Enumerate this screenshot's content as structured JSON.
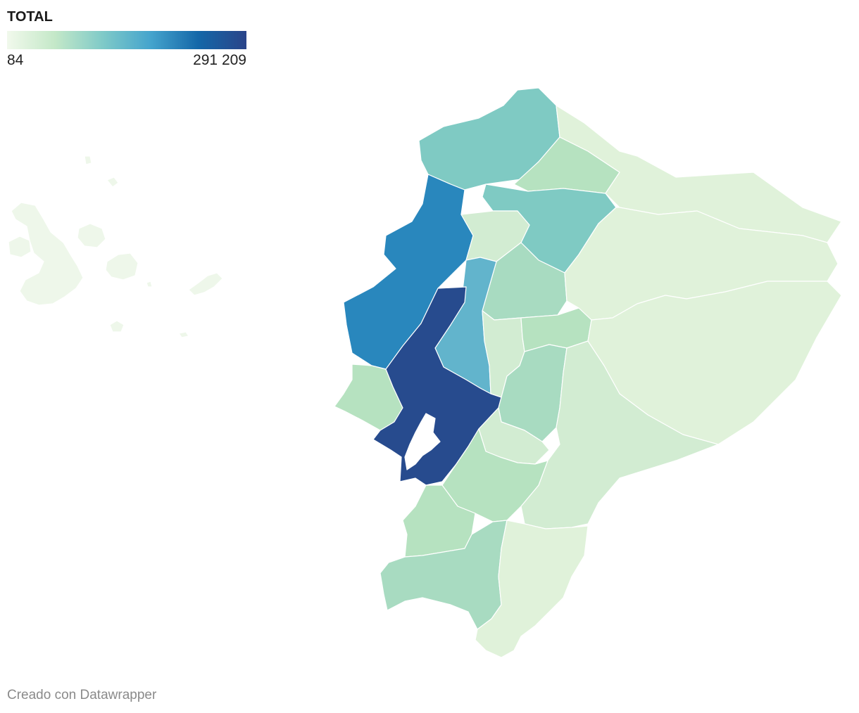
{
  "legend": {
    "title": "TOTAL",
    "min_label": "84",
    "max_label": "291 209"
  },
  "credit": "Creado con Datawrapper",
  "colors": {
    "very_light": "#e2f4de",
    "light": "#d2ecd2",
    "light_mid": "#b6e2c0",
    "mid_green": "#a8dbc1",
    "teal": "#7fcac3",
    "mid_blue": "#62b4cc",
    "blue": "#2987bd",
    "dark_blue": "#274b8e",
    "islands": "#eef7ea"
  }
}
